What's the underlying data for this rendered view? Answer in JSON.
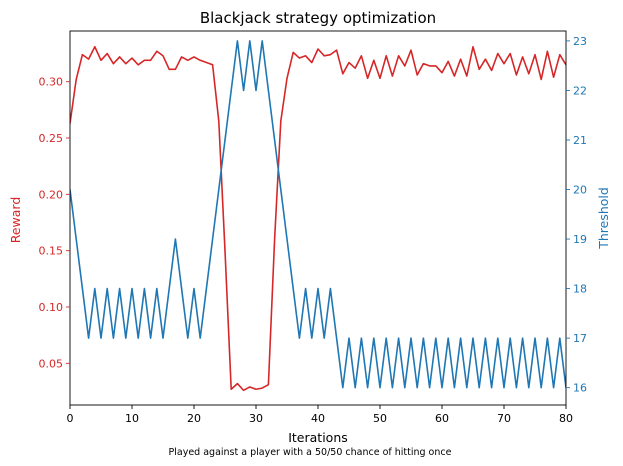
{
  "chart_data": {
    "type": "line",
    "title": "Blackjack strategy optimization",
    "subtitle": "Played against a player with a 50/50 chance of hitting once",
    "xlabel": "Iterations",
    "xlim": [
      0,
      80
    ],
    "xticks": [
      0,
      10,
      20,
      30,
      40,
      50,
      60,
      70,
      80
    ],
    "grid": false,
    "y_left": {
      "label": "Reward",
      "color": "#d62728",
      "ylim": [
        0.013,
        0.345
      ],
      "ticks": [
        0.05,
        0.1,
        0.15,
        0.2,
        0.25,
        0.3
      ],
      "tick_labels": [
        "0.05",
        "0.10",
        "0.15",
        "0.20",
        "0.25",
        "0.30"
      ]
    },
    "y_right": {
      "label": "Threshold",
      "color": "#1f77b4",
      "ylim": [
        15.65,
        23.2
      ],
      "ticks": [
        16,
        17,
        18,
        19,
        20,
        21,
        22,
        23
      ],
      "tick_labels": [
        "16",
        "17",
        "18",
        "19",
        "20",
        "21",
        "22",
        "23"
      ]
    },
    "series": [
      {
        "axis": "left",
        "color": "#d62728",
        "x": [
          0,
          1,
          2,
          3,
          4,
          5,
          6,
          7,
          8,
          9,
          10,
          11,
          12,
          13,
          14,
          15,
          16,
          17,
          18,
          19,
          20,
          21,
          22,
          23,
          24,
          25,
          26,
          27,
          28,
          29,
          30,
          31,
          32,
          33,
          34,
          35,
          36,
          37,
          38,
          39,
          40,
          41,
          42,
          43,
          44,
          45,
          46,
          47,
          48,
          49,
          50,
          51,
          52,
          53,
          54,
          55,
          56,
          57,
          58,
          59,
          60,
          61,
          62,
          63,
          64,
          65,
          66,
          67,
          68,
          69,
          70,
          71,
          72,
          73,
          74,
          75,
          76,
          77,
          78,
          79,
          80
        ],
        "values": [
          0.263,
          0.302,
          0.324,
          0.32,
          0.331,
          0.319,
          0.325,
          0.316,
          0.322,
          0.316,
          0.321,
          0.315,
          0.319,
          0.319,
          0.327,
          0.323,
          0.311,
          0.311,
          0.322,
          0.319,
          0.322,
          0.319,
          0.317,
          0.315,
          0.265,
          0.15,
          0.027,
          0.032,
          0.026,
          0.029,
          0.027,
          0.028,
          0.031,
          0.16,
          0.265,
          0.303,
          0.326,
          0.321,
          0.323,
          0.317,
          0.329,
          0.323,
          0.324,
          0.328,
          0.307,
          0.317,
          0.312,
          0.323,
          0.303,
          0.319,
          0.303,
          0.323,
          0.305,
          0.323,
          0.314,
          0.328,
          0.306,
          0.316,
          0.314,
          0.314,
          0.308,
          0.318,
          0.305,
          0.32,
          0.305,
          0.331,
          0.311,
          0.32,
          0.31,
          0.325,
          0.316,
          0.325,
          0.306,
          0.322,
          0.307,
          0.324,
          0.302,
          0.327,
          0.304,
          0.324,
          0.315
        ]
      },
      {
        "axis": "right",
        "color": "#1f77b4",
        "x": [
          0,
          1,
          2,
          3,
          4,
          5,
          6,
          7,
          8,
          9,
          10,
          11,
          12,
          13,
          14,
          15,
          16,
          17,
          18,
          19,
          20,
          21,
          22,
          23,
          24,
          25,
          26,
          27,
          28,
          29,
          30,
          31,
          32,
          33,
          34,
          35,
          36,
          37,
          38,
          39,
          40,
          41,
          42,
          43,
          44,
          45,
          46,
          47,
          48,
          49,
          50,
          51,
          52,
          53,
          54,
          55,
          56,
          57,
          58,
          59,
          60,
          61,
          62,
          63,
          64,
          65,
          66,
          67,
          68,
          69,
          70,
          71,
          72,
          73,
          74,
          75,
          76,
          77,
          78,
          79,
          80
        ],
        "values": [
          20,
          19,
          18,
          17,
          18,
          17,
          18,
          17,
          18,
          17,
          18,
          17,
          18,
          17,
          18,
          17,
          18,
          19,
          18,
          17,
          18,
          17,
          18,
          19,
          20,
          21,
          22,
          23,
          22,
          23,
          22,
          23,
          22,
          21,
          20,
          19,
          18,
          17,
          18,
          17,
          18,
          17,
          18,
          17,
          16,
          17,
          16,
          17,
          16,
          17,
          16,
          17,
          16,
          17,
          16,
          17,
          16,
          17,
          16,
          17,
          16,
          17,
          16,
          17,
          16,
          17,
          16,
          17,
          16,
          17,
          16,
          17,
          16,
          17,
          16,
          17,
          16,
          17,
          16,
          17,
          16
        ]
      }
    ]
  }
}
